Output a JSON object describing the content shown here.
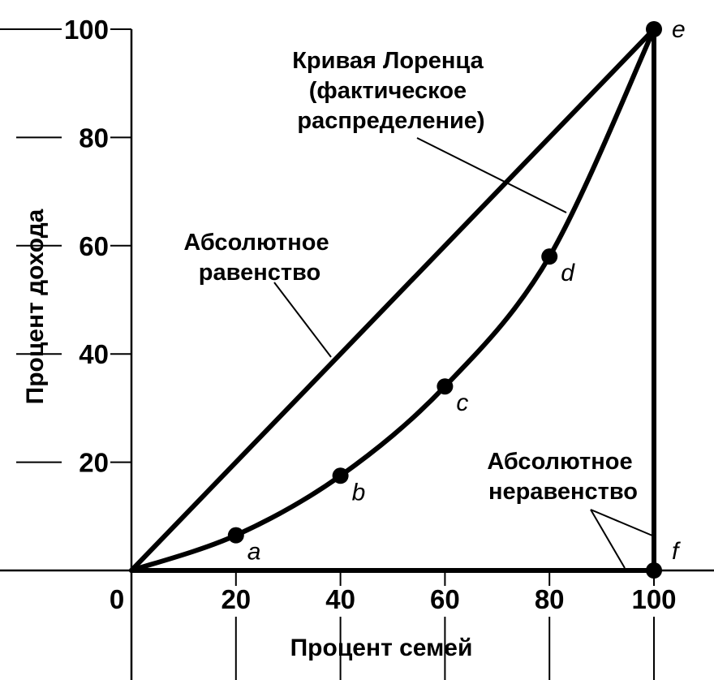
{
  "chart_data": {
    "type": "line",
    "xlabel": "Процент семей",
    "ylabel": "Процент дохода",
    "xlim": [
      0,
      100
    ],
    "ylim": [
      0,
      100
    ],
    "x_ticks": [
      "0",
      "20",
      "40",
      "60",
      "80",
      "100"
    ],
    "y_ticks": [
      "20",
      "40",
      "60",
      "80",
      "100"
    ],
    "grid": false,
    "series": [
      {
        "key": "equality",
        "x": [
          0,
          100
        ],
        "y": [
          0,
          100
        ],
        "color": "#000000"
      },
      {
        "key": "lorenz",
        "x": [
          0,
          20,
          40,
          60,
          80,
          100
        ],
        "y": [
          0,
          6.5,
          17.5,
          34,
          58,
          100
        ],
        "color": "#000000",
        "points": [
          {
            "x": 20,
            "y": 6.5,
            "label": "a"
          },
          {
            "x": 40,
            "y": 17.5,
            "label": "b"
          },
          {
            "x": 60,
            "y": 34,
            "label": "c"
          },
          {
            "x": 80,
            "y": 58,
            "label": "d"
          },
          {
            "x": 100,
            "y": 100,
            "label": "e"
          }
        ]
      },
      {
        "key": "inequality",
        "x": [
          0,
          100,
          100
        ],
        "y": [
          0,
          0,
          100
        ],
        "color": "#000000",
        "points": [
          {
            "x": 100,
            "y": 0,
            "label": "f"
          }
        ]
      }
    ],
    "annotations": {
      "lorenz": [
        "Кривая Лоренца",
        "(фактическое",
        "распределение)"
      ],
      "equality": [
        "Абсолютное",
        "равенство"
      ],
      "inequality": [
        "Абсолютное",
        "неравенство"
      ]
    }
  }
}
